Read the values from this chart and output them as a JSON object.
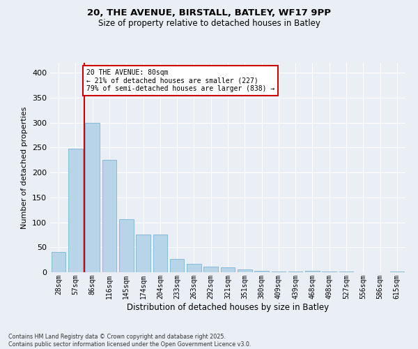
{
  "title1": "20, THE AVENUE, BIRSTALL, BATLEY, WF17 9PP",
  "title2": "Size of property relative to detached houses in Batley",
  "xlabel": "Distribution of detached houses by size in Batley",
  "ylabel": "Number of detached properties",
  "categories": [
    "28sqm",
    "57sqm",
    "86sqm",
    "116sqm",
    "145sqm",
    "174sqm",
    "204sqm",
    "233sqm",
    "263sqm",
    "292sqm",
    "321sqm",
    "351sqm",
    "380sqm",
    "409sqm",
    "439sqm",
    "468sqm",
    "498sqm",
    "527sqm",
    "556sqm",
    "586sqm",
    "615sqm"
  ],
  "values": [
    40,
    248,
    300,
    225,
    107,
    75,
    75,
    27,
    17,
    11,
    10,
    5,
    3,
    2,
    2,
    3,
    2,
    1,
    0,
    0,
    2
  ],
  "bar_color": "#b8d4e8",
  "bar_edge_color": "#7ab4d4",
  "marker_line_color": "#cc0000",
  "annotation_text": "20 THE AVENUE: 80sqm\n← 21% of detached houses are smaller (227)\n79% of semi-detached houses are larger (838) →",
  "annotation_box_color": "#cc0000",
  "background_color": "#eaeff5",
  "footer_text": "Contains HM Land Registry data © Crown copyright and database right 2025.\nContains public sector information licensed under the Open Government Licence v3.0.",
  "ylim": [
    0,
    420
  ],
  "yticks": [
    0,
    50,
    100,
    150,
    200,
    250,
    300,
    350,
    400
  ]
}
